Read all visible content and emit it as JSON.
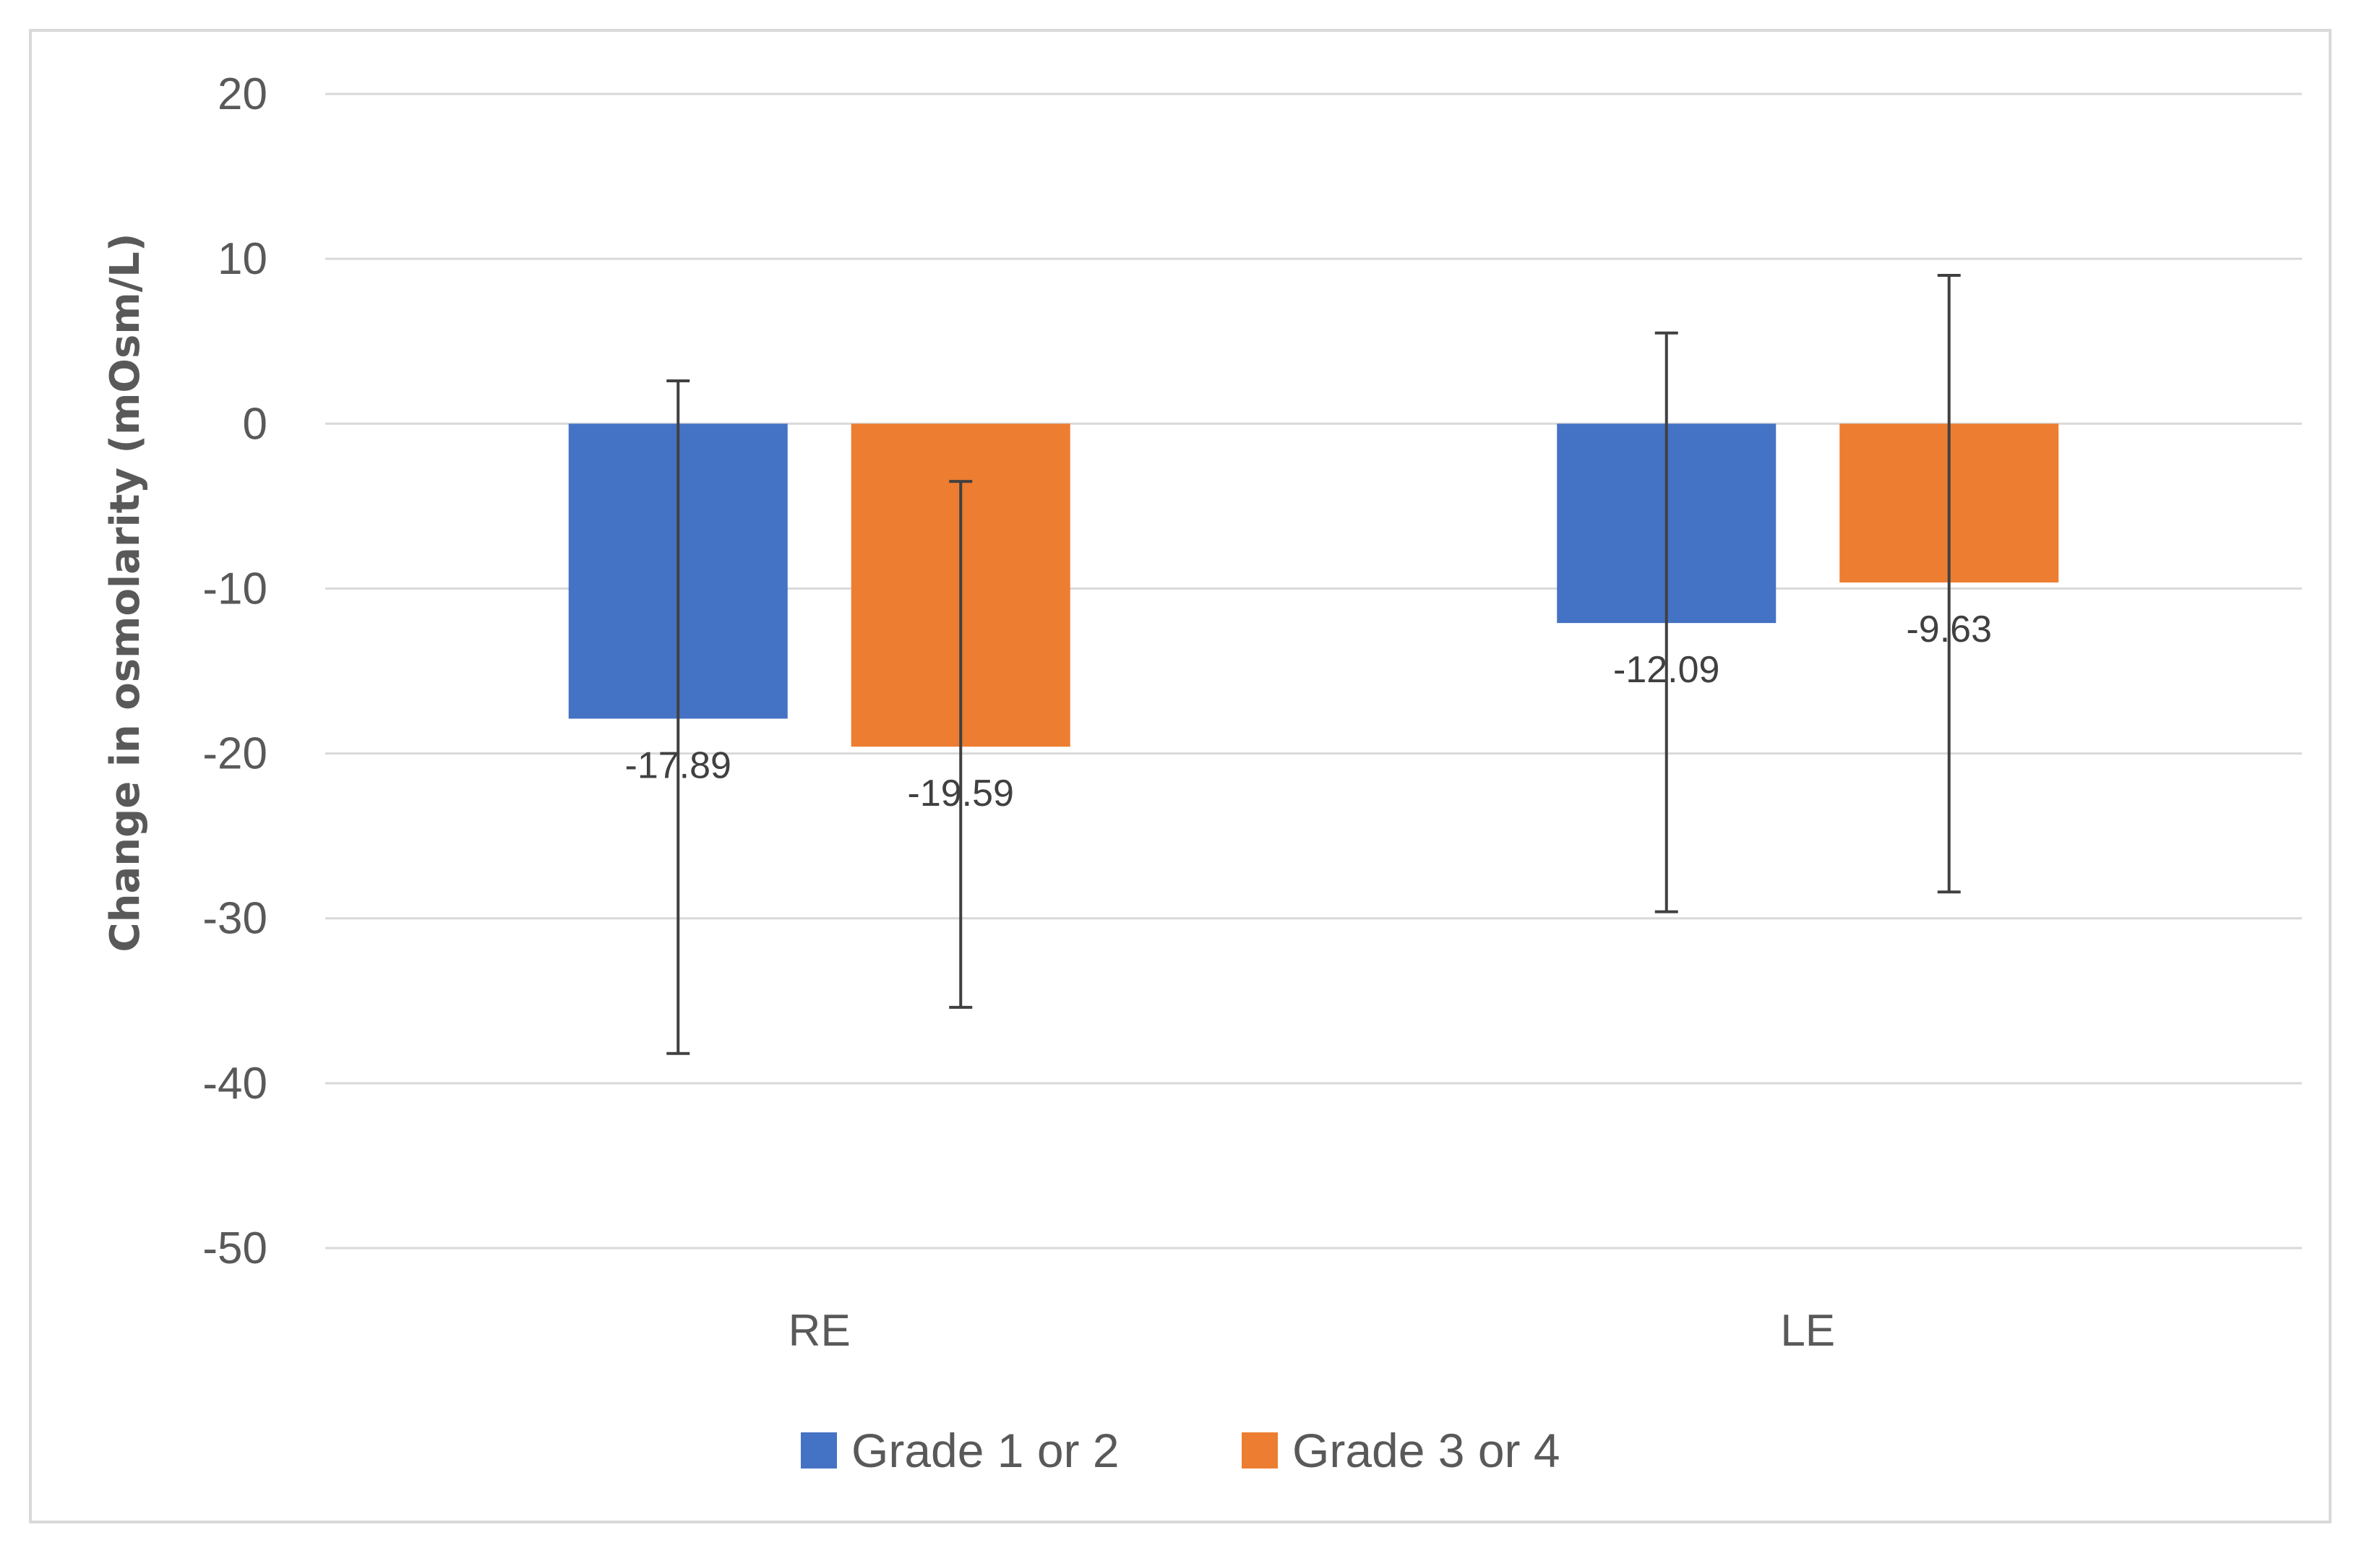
{
  "chart_data": {
    "type": "bar",
    "title": "",
    "xlabel": "",
    "ylabel": "Change in osmolarity (mOsm/L)",
    "categories": [
      "RE",
      "LE"
    ],
    "ylim": [
      -50,
      20
    ],
    "yticks": [
      20,
      10,
      0,
      -10,
      -20,
      -30,
      -40,
      -50
    ],
    "grid": true,
    "legend_position": "bottom",
    "series": [
      {
        "name": "Grade 1 or 2",
        "color": "#4472C4",
        "values": [
          -17.89,
          -12.09
        ],
        "value_labels": [
          "-17.89",
          "-12.09"
        ],
        "error_low": [
          -38.2,
          -29.6
        ],
        "error_high": [
          2.6,
          5.5
        ]
      },
      {
        "name": "Grade 3 or 4",
        "color": "#ED7D31",
        "values": [
          -19.59,
          -9.63
        ],
        "value_labels": [
          "-19.59",
          "-9.63"
        ],
        "error_low": [
          -35.4,
          -28.4
        ],
        "error_high": [
          -3.5,
          9.0
        ]
      }
    ]
  }
}
